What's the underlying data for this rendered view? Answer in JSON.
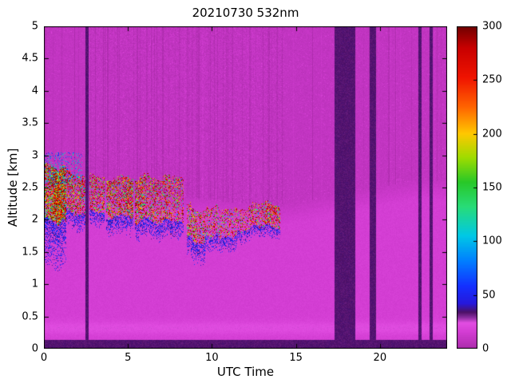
{
  "chart_data": {
    "type": "heatmap",
    "title": "20210730 532nm",
    "xlabel": "UTC Time",
    "ylabel": "Altitude [km]",
    "xlim": [
      0,
      24
    ],
    "ylim": [
      0,
      5
    ],
    "xticks": [
      0,
      5,
      10,
      15,
      20
    ],
    "yticks": [
      0,
      0.5,
      1,
      1.5,
      2,
      2.5,
      3,
      3.5,
      4,
      4.5,
      5
    ],
    "colorbar": {
      "min": 0,
      "max": 300,
      "ticks": [
        0,
        50,
        100,
        150,
        200,
        250,
        300
      ]
    },
    "colormap": [
      [
        0,
        "#AC2CAC"
      ],
      [
        15,
        "#D23CD2"
      ],
      [
        24,
        "#E24EE2"
      ],
      [
        29,
        "#8A2CA0"
      ],
      [
        34,
        "#4C1066"
      ],
      [
        42,
        "#2618DC"
      ],
      [
        58,
        "#1430FF"
      ],
      [
        82,
        "#0080FF"
      ],
      [
        105,
        "#00C8E6"
      ],
      [
        132,
        "#28DC78"
      ],
      [
        155,
        "#28C828"
      ],
      [
        178,
        "#A0DC00"
      ],
      [
        200,
        "#FFC800"
      ],
      [
        225,
        "#FF6400"
      ],
      [
        252,
        "#F01400"
      ],
      [
        280,
        "#C80000"
      ],
      [
        300,
        "#700000"
      ]
    ],
    "gap_value": 33.5,
    "gaps": [
      [
        2.48,
        2.68
      ],
      [
        17.3,
        18.55
      ],
      [
        19.4,
        19.75
      ],
      [
        22.3,
        22.5
      ],
      [
        22.95,
        23.15
      ]
    ],
    "background": {
      "dark_band_top": 0.13,
      "bright_band_alt": 0.32,
      "bright_band_boost": 7,
      "lower_value": 16,
      "upper_value": 8.5,
      "aerosol_top_start": 2.25,
      "aerosol_top_t14": 1.9
    },
    "cloud_segments": [
      {
        "t0": 0.0,
        "t1": 1.35,
        "c0": 2.4,
        "c1": 2.45,
        "h": 0.42,
        "d": 0.88,
        "tail": 0.8
      },
      {
        "t0": 1.35,
        "t1": 2.45,
        "c0": 2.5,
        "c1": 2.5,
        "h": 0.3,
        "d": 0.5,
        "tail": 0.3
      },
      {
        "t0": 2.7,
        "t1": 3.6,
        "c0": 2.55,
        "c1": 2.5,
        "h": 0.28,
        "d": 0.45,
        "tail": 0.25
      },
      {
        "t0": 3.7,
        "t1": 5.3,
        "c0": 2.45,
        "c1": 2.35,
        "h": 0.3,
        "d": 0.55,
        "tail": 0.3
      },
      {
        "t0": 5.4,
        "t1": 8.3,
        "c0": 2.28,
        "c1": 2.2,
        "h": 0.34,
        "d": 0.62,
        "tail": 0.3
      },
      {
        "t0": 8.5,
        "t1": 9.6,
        "c0": 1.95,
        "c1": 1.8,
        "h": 0.25,
        "d": 0.7,
        "tail": 0.35
      },
      {
        "t0": 9.6,
        "t1": 11.5,
        "c0": 1.85,
        "c1": 1.95,
        "h": 0.22,
        "d": 0.6,
        "tail": 0.25
      },
      {
        "t0": 11.5,
        "t1": 14.05,
        "c0": 1.95,
        "c1": 2.0,
        "h": 0.18,
        "d": 0.5,
        "tail": 0.2
      }
    ],
    "noise_seed": 20210730
  }
}
